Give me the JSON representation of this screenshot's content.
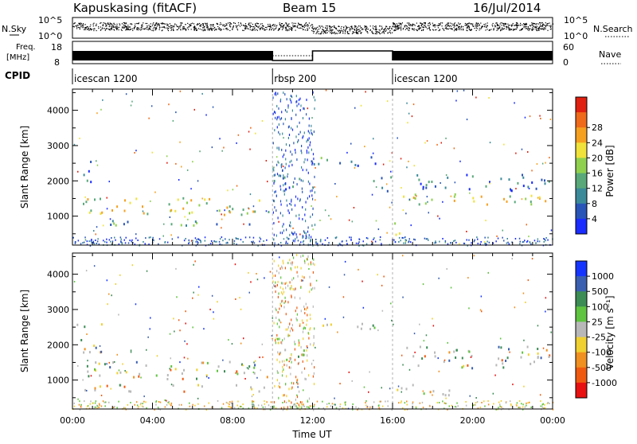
{
  "header": {
    "station": "Kapuskasing (fitACF)",
    "beam": "Beam 15",
    "date": "16/Jul/2014"
  },
  "top_strips": {
    "nsky_label": "N.Sky",
    "nsky_ticks": [
      "10^5",
      "10^0"
    ],
    "nsearch_label": "N.Search",
    "nsearch_ticks": [
      "10^5",
      "10^0"
    ],
    "freq_label_1": "Freq.",
    "freq_label_2": "[MHz]",
    "freq_ticks": [
      "18",
      "8"
    ],
    "nave_label": "Nave",
    "nave_ticks": [
      "60",
      "0"
    ],
    "cpid_label": "CPID",
    "cpid_segments": [
      {
        "name": "icescan 1200",
        "start_h": 0,
        "end_h": 10
      },
      {
        "name": "rbsp 200",
        "start_h": 10,
        "end_h": 16
      },
      {
        "name": "icescan 1200",
        "start_h": 16,
        "end_h": 24
      }
    ]
  },
  "chart_data": [
    {
      "type": "heatmap",
      "panel": "power",
      "xlabel": "",
      "ylabel": "Slant Range [km]",
      "xlim": [
        0,
        24
      ],
      "ylim": [
        180,
        4600
      ],
      "yticks": [
        "1000",
        "2000",
        "3000",
        "4000"
      ],
      "colorbar": {
        "label": "Power [dB]",
        "ticks": [
          "4",
          "8",
          "12",
          "16",
          "20",
          "24",
          "28"
        ],
        "colors": [
          "#1a2cff",
          "#2a55b8",
          "#3b8a9a",
          "#58a87a",
          "#8fd14f",
          "#f0e23a",
          "#f6a020",
          "#ef6a1a",
          "#e02010"
        ]
      },
      "echo_regions": [
        {
          "t0": 0.5,
          "t1": 9.8,
          "r0": 1050,
          "r1": 1550,
          "level": 0.55
        },
        {
          "t0": 0.5,
          "t1": 9.8,
          "r0": 750,
          "r1": 900,
          "level": 0.3
        },
        {
          "t0": 0.4,
          "t1": 1.2,
          "r0": 2000,
          "r1": 2650,
          "level": 0.2
        },
        {
          "t0": 10.0,
          "t1": 11.5,
          "r0": 1650,
          "r1": 2200,
          "level": 0.2
        },
        {
          "t0": 11.8,
          "t1": 15.3,
          "r0": 2400,
          "r1": 2700,
          "level": 0.25
        },
        {
          "t0": 15.0,
          "t1": 16.0,
          "r0": 1700,
          "r1": 2200,
          "level": 0.2
        },
        {
          "t0": 16.0,
          "t1": 16.7,
          "r0": 400,
          "r1": 850,
          "level": 0.45
        },
        {
          "t0": 16.5,
          "t1": 23.9,
          "r0": 1350,
          "r1": 1700,
          "level": 0.55
        },
        {
          "t0": 16.5,
          "t1": 23.9,
          "r0": 1750,
          "r1": 2200,
          "level": 0.15
        }
      ]
    },
    {
      "type": "heatmap",
      "panel": "velocity",
      "xlabel": "Time UT",
      "ylabel": "Slant Range [km]",
      "xlim": [
        0,
        24
      ],
      "ylim": [
        180,
        4600
      ],
      "xticks": [
        "00:00",
        "04:00",
        "08:00",
        "12:00",
        "16:00",
        "20:00",
        "00:00"
      ],
      "yticks": [
        "1000",
        "2000",
        "3000",
        "4000"
      ],
      "colorbar": {
        "label": "Velocity [m s⁻¹]",
        "ticks": [
          "1000",
          "500",
          "100",
          "25",
          "-25",
          "-100",
          "-500",
          "-1000"
        ],
        "colors": [
          "#1535ff",
          "#3a5fb0",
          "#3c8c55",
          "#5fc43f",
          "#b8b8b8",
          "#f0d030",
          "#f09020",
          "#f05a10",
          "#e81010"
        ]
      },
      "echo_regions": [
        {
          "t0": 0.5,
          "t1": 9.8,
          "r0": 1050,
          "r1": 1550,
          "level": 0.5
        },
        {
          "t0": 0.5,
          "t1": 9.8,
          "r0": 700,
          "r1": 900,
          "level": 0.45
        },
        {
          "t0": 0.2,
          "t1": 1.5,
          "r0": 1800,
          "r1": 2650,
          "level": 0.45
        },
        {
          "t0": 10.0,
          "t1": 11.6,
          "r0": 1600,
          "r1": 2200,
          "level": 0.45
        },
        {
          "t0": 11.8,
          "t1": 15.3,
          "r0": 2450,
          "r1": 2700,
          "level": 0.45
        },
        {
          "t0": 15.5,
          "t1": 19.0,
          "r0": 600,
          "r1": 900,
          "level": 0.45
        },
        {
          "t0": 16.5,
          "t1": 23.9,
          "r0": 1350,
          "r1": 2000,
          "level": 0.45
        }
      ]
    }
  ]
}
